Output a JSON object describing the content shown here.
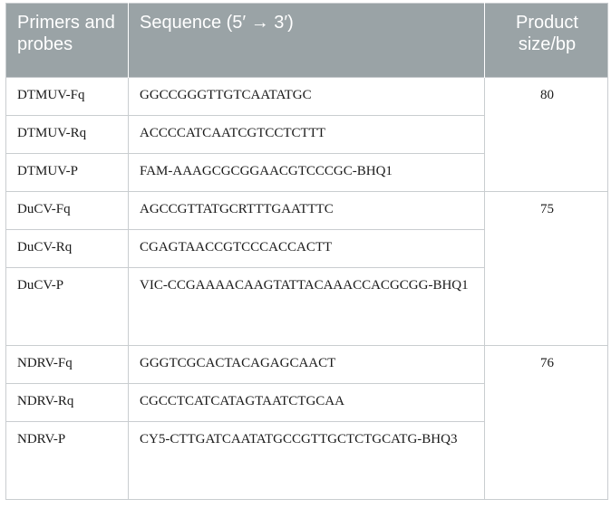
{
  "header": {
    "col1": "Primers and probes",
    "col2": "Sequence (5′ → 3′)",
    "col3": "Product size/bp"
  },
  "groups": [
    {
      "size": "80",
      "rows": [
        {
          "name": "DTMUV-Fq",
          "sequence": "GGCCGGGTTGTCAATATGC"
        },
        {
          "name": "DTMUV-Rq",
          "sequence": "ACCCCATCAATCGTCCTCTTT"
        },
        {
          "name": "DTMUV-P",
          "sequence": "FAM-AAAGCGCGGAACGTCCCGC-BHQ1"
        }
      ]
    },
    {
      "size": "75",
      "rows": [
        {
          "name": "DuCV-Fq",
          "sequence": "AGCCGTTATGCRTTTGAATTTC"
        },
        {
          "name": "DuCV-Rq",
          "sequence": "CGAGTAACCGTCCCACCACTT"
        },
        {
          "name": "DuCV-P",
          "sequence": "VIC-CCGAAAACAAGTATTACAAACCACGCGG-BHQ1"
        }
      ]
    },
    {
      "size": "76",
      "rows": [
        {
          "name": "NDRV-Fq",
          "sequence": "GGGTCGCACTACAGAGCAACT"
        },
        {
          "name": "NDRV-Rq",
          "sequence": "CGCCTCATCATAGTAATCTGCAA"
        },
        {
          "name": "NDRV-P",
          "sequence": "CY5-CTTGATCAATATGCCGTTGCTCTGCATG-BHQ3"
        }
      ]
    }
  ]
}
